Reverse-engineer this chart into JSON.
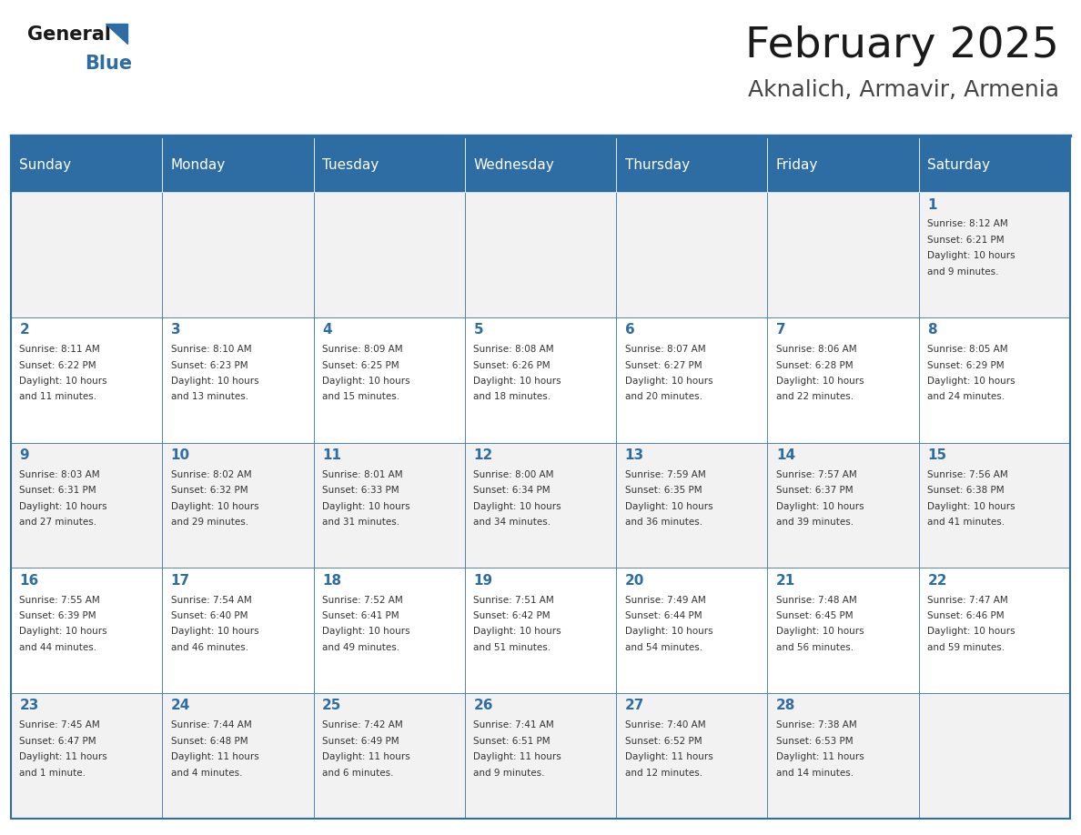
{
  "title": "February 2025",
  "subtitle": "Aknalich, Armavir, Armenia",
  "days_of_week": [
    "Sunday",
    "Monday",
    "Tuesday",
    "Wednesday",
    "Thursday",
    "Friday",
    "Saturday"
  ],
  "header_bg": "#2e6da4",
  "header_text": "#ffffff",
  "cell_bg": "#f2f2f2",
  "cell_bg_alt": "#ffffff",
  "border_color": "#2e6da4",
  "day_number_color": "#2e6da4",
  "cell_text_color": "#333333",
  "title_color": "#1a1a1a",
  "subtitle_color": "#444444",
  "weeks": [
    [
      null,
      null,
      null,
      null,
      null,
      null,
      1
    ],
    [
      2,
      3,
      4,
      5,
      6,
      7,
      8
    ],
    [
      9,
      10,
      11,
      12,
      13,
      14,
      15
    ],
    [
      16,
      17,
      18,
      19,
      20,
      21,
      22
    ],
    [
      23,
      24,
      25,
      26,
      27,
      28,
      null
    ]
  ],
  "cell_data": {
    "1": [
      "Sunrise: 8:12 AM",
      "Sunset: 6:21 PM",
      "Daylight: 10 hours",
      "and 9 minutes."
    ],
    "2": [
      "Sunrise: 8:11 AM",
      "Sunset: 6:22 PM",
      "Daylight: 10 hours",
      "and 11 minutes."
    ],
    "3": [
      "Sunrise: 8:10 AM",
      "Sunset: 6:23 PM",
      "Daylight: 10 hours",
      "and 13 minutes."
    ],
    "4": [
      "Sunrise: 8:09 AM",
      "Sunset: 6:25 PM",
      "Daylight: 10 hours",
      "and 15 minutes."
    ],
    "5": [
      "Sunrise: 8:08 AM",
      "Sunset: 6:26 PM",
      "Daylight: 10 hours",
      "and 18 minutes."
    ],
    "6": [
      "Sunrise: 8:07 AM",
      "Sunset: 6:27 PM",
      "Daylight: 10 hours",
      "and 20 minutes."
    ],
    "7": [
      "Sunrise: 8:06 AM",
      "Sunset: 6:28 PM",
      "Daylight: 10 hours",
      "and 22 minutes."
    ],
    "8": [
      "Sunrise: 8:05 AM",
      "Sunset: 6:29 PM",
      "Daylight: 10 hours",
      "and 24 minutes."
    ],
    "9": [
      "Sunrise: 8:03 AM",
      "Sunset: 6:31 PM",
      "Daylight: 10 hours",
      "and 27 minutes."
    ],
    "10": [
      "Sunrise: 8:02 AM",
      "Sunset: 6:32 PM",
      "Daylight: 10 hours",
      "and 29 minutes."
    ],
    "11": [
      "Sunrise: 8:01 AM",
      "Sunset: 6:33 PM",
      "Daylight: 10 hours",
      "and 31 minutes."
    ],
    "12": [
      "Sunrise: 8:00 AM",
      "Sunset: 6:34 PM",
      "Daylight: 10 hours",
      "and 34 minutes."
    ],
    "13": [
      "Sunrise: 7:59 AM",
      "Sunset: 6:35 PM",
      "Daylight: 10 hours",
      "and 36 minutes."
    ],
    "14": [
      "Sunrise: 7:57 AM",
      "Sunset: 6:37 PM",
      "Daylight: 10 hours",
      "and 39 minutes."
    ],
    "15": [
      "Sunrise: 7:56 AM",
      "Sunset: 6:38 PM",
      "Daylight: 10 hours",
      "and 41 minutes."
    ],
    "16": [
      "Sunrise: 7:55 AM",
      "Sunset: 6:39 PM",
      "Daylight: 10 hours",
      "and 44 minutes."
    ],
    "17": [
      "Sunrise: 7:54 AM",
      "Sunset: 6:40 PM",
      "Daylight: 10 hours",
      "and 46 minutes."
    ],
    "18": [
      "Sunrise: 7:52 AM",
      "Sunset: 6:41 PM",
      "Daylight: 10 hours",
      "and 49 minutes."
    ],
    "19": [
      "Sunrise: 7:51 AM",
      "Sunset: 6:42 PM",
      "Daylight: 10 hours",
      "and 51 minutes."
    ],
    "20": [
      "Sunrise: 7:49 AM",
      "Sunset: 6:44 PM",
      "Daylight: 10 hours",
      "and 54 minutes."
    ],
    "21": [
      "Sunrise: 7:48 AM",
      "Sunset: 6:45 PM",
      "Daylight: 10 hours",
      "and 56 minutes."
    ],
    "22": [
      "Sunrise: 7:47 AM",
      "Sunset: 6:46 PM",
      "Daylight: 10 hours",
      "and 59 minutes."
    ],
    "23": [
      "Sunrise: 7:45 AM",
      "Sunset: 6:47 PM",
      "Daylight: 11 hours",
      "and 1 minute."
    ],
    "24": [
      "Sunrise: 7:44 AM",
      "Sunset: 6:48 PM",
      "Daylight: 11 hours",
      "and 4 minutes."
    ],
    "25": [
      "Sunrise: 7:42 AM",
      "Sunset: 6:49 PM",
      "Daylight: 11 hours",
      "and 6 minutes."
    ],
    "26": [
      "Sunrise: 7:41 AM",
      "Sunset: 6:51 PM",
      "Daylight: 11 hours",
      "and 9 minutes."
    ],
    "27": [
      "Sunrise: 7:40 AM",
      "Sunset: 6:52 PM",
      "Daylight: 11 hours",
      "and 12 minutes."
    ],
    "28": [
      "Sunrise: 7:38 AM",
      "Sunset: 6:53 PM",
      "Daylight: 11 hours",
      "and 14 minutes."
    ]
  }
}
